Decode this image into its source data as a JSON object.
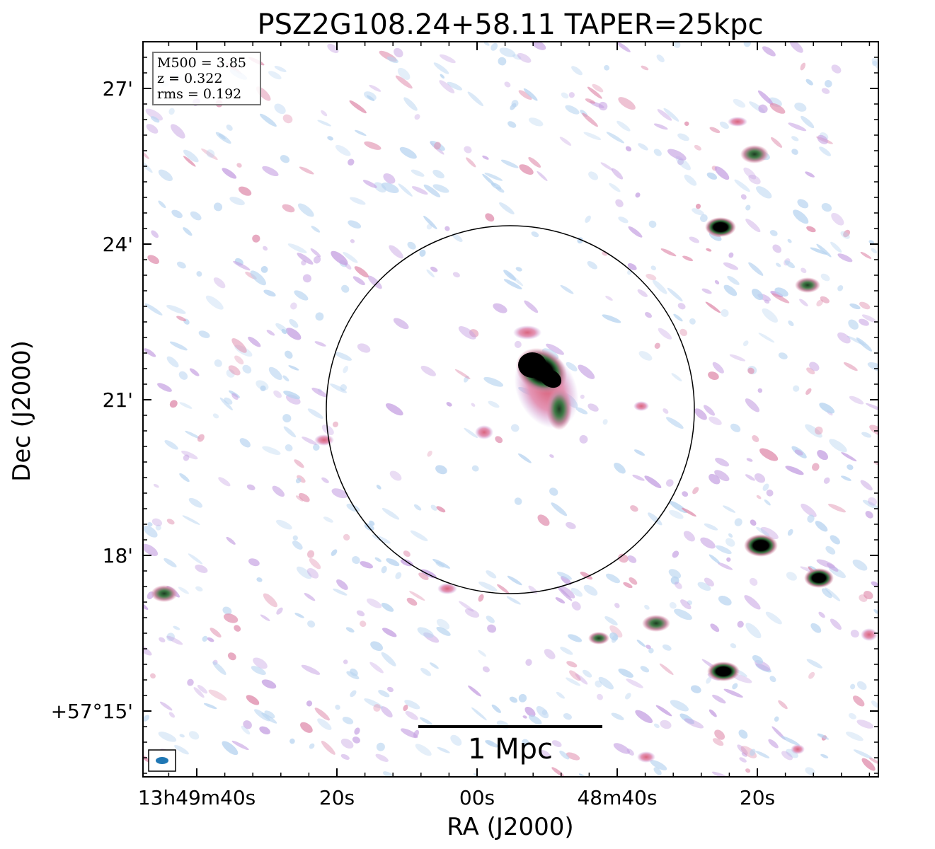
{
  "figure": {
    "title": "PSZ2G108.24+58.11 TAPER=25kpc",
    "xlabel": "RA (J2000)",
    "ylabel": "Dec (J2000)",
    "x_ticks": [
      "13h49m40s",
      "20s",
      "00s",
      "48m40s",
      "20s"
    ],
    "y_ticks": [
      "27'",
      "24'",
      "21'",
      "18'",
      "+57°15'"
    ],
    "info": {
      "m500": "M500 = 3.85",
      "z": "z = 0.322",
      "rms": "rms = 0.192"
    },
    "scalebar_label": "1 Mpc",
    "colors": {
      "faint_emission": "#b8d4f0",
      "mid_emission": "#c6a2e2",
      "pink_emission": "#e08fae",
      "green_core": "#2f6f3a",
      "peak": "#000000",
      "beam": "#1f77b4"
    }
  }
}
